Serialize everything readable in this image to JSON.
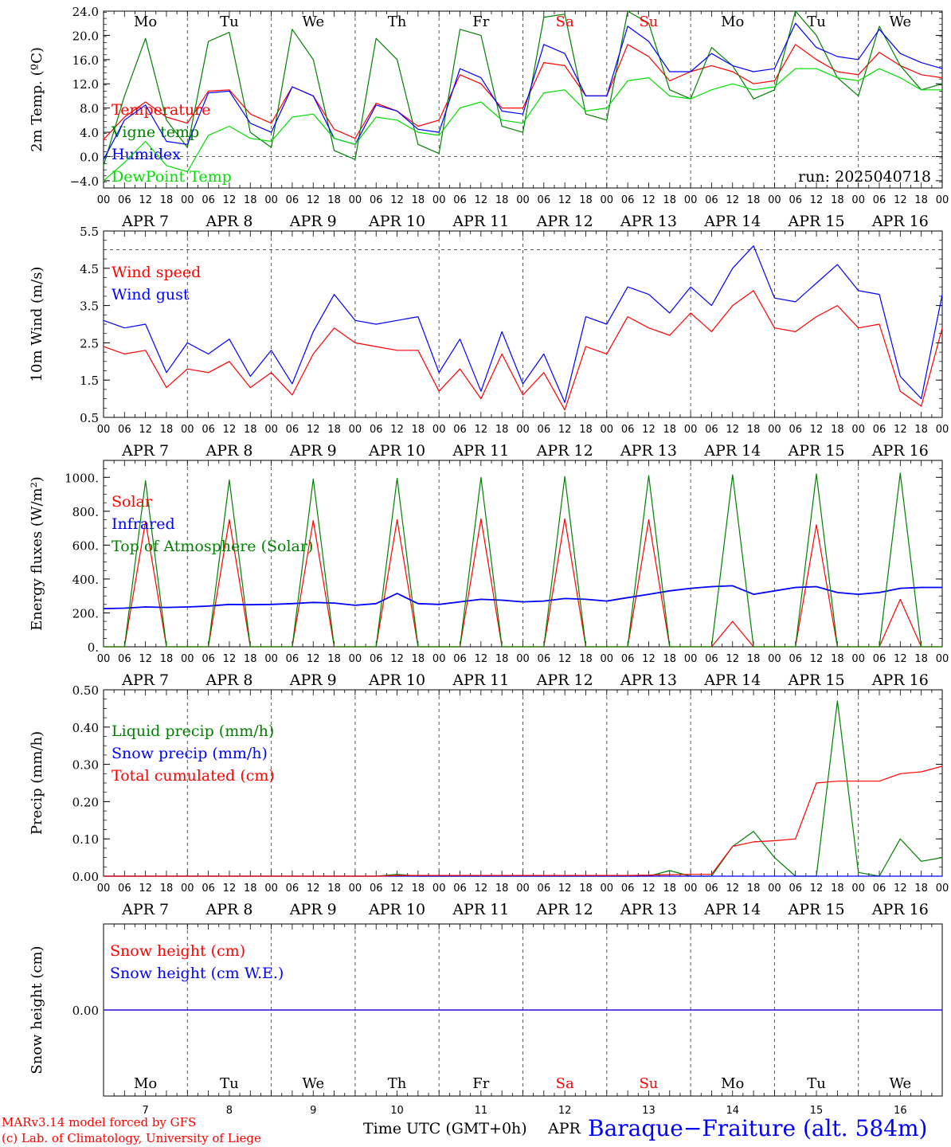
{
  "colors": {
    "red": "#ff0000",
    "green": "#008000",
    "blue": "#0000ff",
    "lightgreen": "#00dd00",
    "black": "#000000"
  },
  "days": [
    "Mo",
    "Tu",
    "We",
    "Th",
    "Fr",
    "Sa",
    "Su",
    "Mo",
    "Tu",
    "We"
  ],
  "weekend_days": [
    "Sa",
    "Su"
  ],
  "dates": [
    "APR  7",
    "APR  8",
    "APR  9",
    "APR 10",
    "APR 11",
    "APR 12",
    "APR 13",
    "APR 14",
    "APR 15",
    "APR 16"
  ],
  "hour_ticks": [
    "00",
    "06",
    "12",
    "18"
  ],
  "footer": {
    "credit_line1": "MARv3.14 model forced by GFS",
    "credit_line2": "(c) Lab. of Climatology, University of Liege",
    "time_axis": "Time UTC (GMT+0h)",
    "apr": "APR",
    "station": "Baraque−Fraiture (alt. 584m)",
    "day_numbers": [
      "7",
      "8",
      "9",
      "10",
      "11",
      "12",
      "13",
      "14",
      "15",
      "16"
    ]
  },
  "chart_data": [
    {
      "type": "line",
      "ylabel": "2m Temp. (ºC)",
      "ylim": [
        -5.2,
        24.0
      ],
      "yticks": [
        "24.0",
        "20.0",
        "16.0",
        "12.0",
        "8.0",
        "4.0",
        "0.0",
        "−4.0"
      ],
      "ytick_values": [
        24,
        20,
        16,
        12,
        8,
        4,
        0,
        -4
      ],
      "zero_line": 0,
      "annotation": "run: 2025040718",
      "x_hours": [
        0,
        6,
        12,
        18,
        24,
        30,
        36,
        42,
        48,
        54,
        60,
        66,
        72,
        78,
        84,
        90,
        96,
        102,
        108,
        114,
        120,
        126,
        132,
        138,
        144,
        150,
        156,
        162,
        168,
        174,
        180,
        186,
        192,
        198,
        204,
        210,
        216,
        222,
        228,
        234,
        240
      ],
      "series": [
        {
          "name": "Temperature",
          "color": "red",
          "values": [
            2.8,
            6.5,
            9.0,
            6.5,
            5.5,
            10.8,
            11.0,
            7.0,
            5.5,
            11.5,
            10.0,
            4.5,
            3.0,
            8.8,
            7.5,
            5.0,
            6.0,
            13.5,
            12.0,
            8.0,
            8.0,
            15.5,
            15.0,
            10.0,
            10.0,
            18.5,
            16.5,
            12.5,
            14.0,
            15.0,
            14.0,
            12.0,
            12.5,
            18.5,
            16.0,
            14.0,
            13.5,
            17.2,
            15.0,
            13.5,
            13.0
          ]
        },
        {
          "name": "Vigne temp",
          "color": "green",
          "values": [
            -1.5,
            10.0,
            19.5,
            6.0,
            1.5,
            19.0,
            20.5,
            4.0,
            1.5,
            21.0,
            16.0,
            1.0,
            -0.5,
            19.5,
            16.0,
            2.0,
            0.5,
            21.0,
            20.0,
            5.0,
            4.0,
            23.0,
            23.5,
            7.0,
            6.0,
            24.0,
            22.0,
            11.0,
            9.5,
            18.0,
            15.0,
            9.5,
            11.0,
            24.0,
            20.0,
            13.0,
            10.0,
            21.5,
            15.0,
            11.0,
            12.0
          ]
        },
        {
          "name": "Humidex",
          "color": "blue",
          "values": [
            -0.5,
            6.0,
            8.5,
            2.5,
            2.0,
            10.5,
            10.8,
            5.5,
            4.0,
            11.5,
            10.0,
            3.0,
            2.0,
            8.5,
            7.5,
            4.5,
            4.0,
            14.5,
            13.0,
            7.5,
            7.0,
            18.5,
            17.0,
            10.0,
            10.0,
            21.5,
            19.0,
            14.0,
            14.0,
            17.0,
            15.0,
            14.0,
            14.5,
            22.0,
            18.0,
            16.5,
            16.0,
            21.0,
            17.0,
            15.5,
            14.5
          ]
        },
        {
          "name": "DewPoint Temp",
          "color": "lightgreen",
          "values": [
            -4.0,
            -1.0,
            2.5,
            -1.5,
            -2.5,
            3.5,
            5.0,
            3.0,
            2.5,
            6.5,
            7.0,
            3.0,
            2.0,
            6.5,
            6.0,
            4.0,
            3.5,
            8.0,
            9.0,
            6.0,
            5.5,
            10.5,
            11.0,
            7.5,
            8.0,
            12.5,
            13.0,
            10.0,
            9.5,
            11.0,
            12.0,
            11.0,
            11.5,
            14.5,
            14.5,
            13.0,
            12.5,
            14.5,
            13.0,
            11.0,
            11.0
          ]
        }
      ]
    },
    {
      "type": "line",
      "ylabel": "10m Wind (m/s)",
      "ylim": [
        0.5,
        5.5
      ],
      "yticks": [
        "5.5",
        "4.5",
        "3.5",
        "2.5",
        "1.5",
        "0.5"
      ],
      "ytick_values": [
        5.5,
        4.5,
        3.5,
        2.5,
        1.5,
        0.5
      ],
      "ref_line": 5.0,
      "x_hours": [
        0,
        6,
        12,
        18,
        24,
        30,
        36,
        42,
        48,
        54,
        60,
        66,
        72,
        78,
        84,
        90,
        96,
        102,
        108,
        114,
        120,
        126,
        132,
        138,
        144,
        150,
        156,
        162,
        168,
        174,
        180,
        186,
        192,
        198,
        204,
        210,
        216,
        222,
        228,
        234,
        240
      ],
      "series": [
        {
          "name": "Wind speed",
          "color": "red",
          "values": [
            2.4,
            2.2,
            2.3,
            1.3,
            1.8,
            1.7,
            2.0,
            1.3,
            1.7,
            1.1,
            2.2,
            2.9,
            2.5,
            2.4,
            2.3,
            2.3,
            1.2,
            1.8,
            1.0,
            2.2,
            1.1,
            1.7,
            0.7,
            2.4,
            2.2,
            3.2,
            2.9,
            2.7,
            3.3,
            2.8,
            3.5,
            3.9,
            2.9,
            2.8,
            3.2,
            3.5,
            2.9,
            3.0,
            1.2,
            0.8,
            2.9
          ]
        },
        {
          "name": "Wind gust",
          "color": "blue",
          "values": [
            3.1,
            2.9,
            3.0,
            1.7,
            2.5,
            2.2,
            2.6,
            1.6,
            2.3,
            1.4,
            2.8,
            3.8,
            3.1,
            3.0,
            3.1,
            3.2,
            1.7,
            2.6,
            1.2,
            2.8,
            1.4,
            2.2,
            0.9,
            3.2,
            3.0,
            4.0,
            3.8,
            3.3,
            4.0,
            3.5,
            4.5,
            5.1,
            3.7,
            3.6,
            4.1,
            4.6,
            3.9,
            3.8,
            1.6,
            1.0,
            3.8
          ]
        }
      ]
    },
    {
      "type": "line",
      "ylabel": "Energy fluxes (W/m²)",
      "ylim": [
        0,
        1100
      ],
      "yticks": [
        "1000.",
        "800.",
        "600.",
        "400.",
        "200.",
        "0."
      ],
      "ytick_values": [
        1000,
        800,
        600,
        400,
        200,
        0
      ],
      "x_hours": [
        0,
        6,
        12,
        18,
        24,
        30,
        36,
        42,
        48,
        54,
        60,
        66,
        72,
        78,
        84,
        90,
        96,
        102,
        108,
        114,
        120,
        126,
        132,
        138,
        144,
        150,
        156,
        162,
        168,
        174,
        180,
        186,
        192,
        198,
        204,
        210,
        216,
        222,
        228,
        234,
        240
      ],
      "series": [
        {
          "name": "Solar",
          "color": "red",
          "values": [
            0,
            0,
            740,
            0,
            0,
            0,
            750,
            0,
            0,
            0,
            745,
            0,
            0,
            0,
            750,
            0,
            0,
            0,
            755,
            0,
            0,
            0,
            755,
            0,
            0,
            0,
            750,
            0,
            0,
            0,
            150,
            0,
            0,
            0,
            720,
            0,
            0,
            0,
            280,
            0,
            0
          ]
        },
        {
          "name": "Infrared",
          "color": "blue",
          "values": [
            225,
            228,
            235,
            232,
            235,
            240,
            250,
            248,
            250,
            255,
            262,
            258,
            245,
            255,
            315,
            255,
            250,
            265,
            280,
            275,
            265,
            270,
            285,
            280,
            270,
            290,
            310,
            330,
            345,
            355,
            360,
            310,
            330,
            350,
            355,
            320,
            310,
            320,
            345,
            350,
            350
          ]
        },
        {
          "name": "Top of Atmosphere (Solar)",
          "color": "green",
          "values": [
            0,
            0,
            980,
            0,
            0,
            0,
            985,
            0,
            0,
            0,
            990,
            0,
            0,
            0,
            995,
            0,
            0,
            0,
            1000,
            0,
            0,
            0,
            1005,
            0,
            0,
            0,
            1010,
            0,
            0,
            0,
            1015,
            0,
            0,
            0,
            1020,
            0,
            0,
            0,
            1025,
            0,
            0
          ]
        }
      ]
    },
    {
      "type": "line",
      "ylabel": "Precip (mm/h)",
      "ylim": [
        0,
        0.5
      ],
      "yticks": [
        "0.50",
        "0.40",
        "0.30",
        "0.20",
        "0.10",
        "0.00"
      ],
      "ytick_values": [
        0.5,
        0.4,
        0.3,
        0.2,
        0.1,
        0
      ],
      "x_hours": [
        0,
        6,
        12,
        18,
        24,
        30,
        36,
        42,
        48,
        54,
        60,
        66,
        72,
        78,
        84,
        90,
        96,
        102,
        108,
        114,
        120,
        126,
        132,
        138,
        144,
        150,
        156,
        162,
        168,
        174,
        180,
        186,
        192,
        198,
        204,
        210,
        216,
        222,
        228,
        234,
        240
      ],
      "series": [
        {
          "name": "Liquid precip (mm/h)",
          "color": "green",
          "values": [
            0,
            0,
            0,
            0,
            0,
            0,
            0,
            0,
            0,
            0,
            0,
            0,
            0,
            0,
            0.005,
            0,
            0,
            0,
            0,
            0,
            0,
            0,
            0,
            0,
            0,
            0,
            0,
            0.015,
            0,
            0,
            0.08,
            0.12,
            0.05,
            0,
            0,
            0.47,
            0.01,
            0,
            0.1,
            0.04,
            0.05
          ]
        },
        {
          "name": "Snow precip (mm/h)",
          "color": "blue",
          "values": [
            0,
            0,
            0,
            0,
            0,
            0,
            0,
            0,
            0,
            0,
            0,
            0,
            0,
            0,
            0,
            0,
            0,
            0,
            0,
            0,
            0,
            0,
            0,
            0,
            0,
            0,
            0,
            0,
            0,
            0,
            0,
            0,
            0,
            0,
            0,
            0,
            0,
            0,
            0,
            0,
            0
          ]
        },
        {
          "name": "Total cumulated (cm)",
          "color": "red",
          "values": [
            0,
            0,
            0,
            0,
            0,
            0,
            0,
            0,
            0,
            0,
            0,
            0,
            0,
            0,
            0.002,
            0.002,
            0.002,
            0.002,
            0.002,
            0.002,
            0.002,
            0.002,
            0.002,
            0.002,
            0.002,
            0.002,
            0.003,
            0.004,
            0.005,
            0.005,
            0.08,
            0.092,
            0.095,
            0.1,
            0.25,
            0.255,
            0.255,
            0.255,
            0.275,
            0.28,
            0.295
          ]
        }
      ]
    },
    {
      "type": "line",
      "ylabel": "Snow height (cm)",
      "ylim": [
        -1,
        1
      ],
      "yticks": [
        "0.00"
      ],
      "ytick_values": [
        0
      ],
      "x_hours": [
        0,
        240
      ],
      "series": [
        {
          "name": "Snow height (cm)",
          "color": "red",
          "values": [
            0,
            0
          ]
        },
        {
          "name": "Snow height (cm W.E.)",
          "color": "blue",
          "values": [
            0,
            0
          ]
        }
      ]
    }
  ]
}
